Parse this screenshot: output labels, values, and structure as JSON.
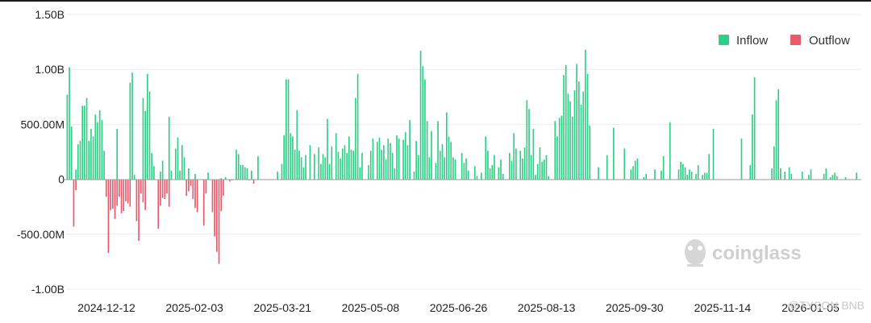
{
  "chart_data": {
    "type": "bar",
    "title": "",
    "xlabel": "",
    "ylabel": "",
    "ylim": [
      -1.0,
      1.5
    ],
    "y_unit": "B",
    "grid": "horizontal",
    "legend_position": "top-right",
    "y_ticks": [
      {
        "value": 1.5,
        "label": "1.50B"
      },
      {
        "value": 1.0,
        "label": "1.00B"
      },
      {
        "value": 0.5,
        "label": "500.00M"
      },
      {
        "value": 0.0,
        "label": "0"
      },
      {
        "value": -0.5,
        "label": "-500.00M"
      },
      {
        "value": -1.0,
        "label": "-1.00B"
      }
    ],
    "x_ticks": [
      "2024-12-12",
      "2025-02-03",
      "2025-03-21",
      "2025-05-08",
      "2025-06-26",
      "2025-08-13",
      "2025-09-30",
      "2025-11-14",
      "2026-01-05"
    ],
    "series": [
      {
        "name": "Inflow",
        "color": "#2fcf87",
        "values": [
          0.77,
          1.02,
          0.48,
          0,
          0.09,
          0.32,
          0.35,
          0.67,
          0.67,
          0.74,
          0.35,
          0.46,
          0.39,
          0.59,
          0.52,
          0.63,
          0.54,
          0.26,
          0,
          0,
          0,
          0,
          0,
          0.46,
          0,
          0,
          0,
          0,
          0,
          0.88,
          0.97,
          0.04,
          0,
          0,
          0,
          0.74,
          0.62,
          0.96,
          0.8,
          0.24,
          0.12,
          0,
          0,
          0.07,
          0.17,
          0,
          0,
          0.57,
          0.08,
          0,
          0.28,
          0.38,
          0.08,
          0.31,
          0.2,
          0,
          0.1,
          0,
          0,
          0.05,
          0,
          0,
          0,
          0,
          0,
          0.06,
          0,
          0,
          0,
          0,
          0,
          0.01,
          0,
          0.02,
          0,
          0,
          0,
          0,
          0.27,
          0.23,
          0.13,
          0.13,
          0.11,
          0.1,
          0,
          0.08,
          0,
          0,
          0.21,
          0,
          0,
          0,
          0,
          0,
          0,
          0,
          0,
          0.07,
          0,
          0.14,
          0.4,
          0.91,
          0.91,
          0.42,
          0.39,
          0.27,
          0.63,
          0.26,
          0.2,
          0.11,
          0.22,
          0,
          0.31,
          0,
          0.23,
          0,
          0.29,
          0.14,
          0.23,
          0.2,
          0.55,
          0.14,
          0.3,
          0,
          0.42,
          0.25,
          0.19,
          0.28,
          0.31,
          0.24,
          0.39,
          0.27,
          0.26,
          0.74,
          0.96,
          0.11,
          0.24,
          0,
          0,
          0.13,
          0.26,
          0.37,
          0,
          0.34,
          0.38,
          0.27,
          0.31,
          0.18,
          0.37,
          0.33,
          0.24,
          0.1,
          0.4,
          0.37,
          0,
          0.36,
          0.43,
          0.31,
          0.54,
          0,
          0.07,
          0.35,
          0.22,
          1.17,
          1.03,
          0.91,
          0.53,
          0.2,
          0.44,
          0,
          0.15,
          0.53,
          0.26,
          0.32,
          0.2,
          0.61,
          0.39,
          0.34,
          0.2,
          0.18,
          0,
          0,
          0.24,
          0.15,
          0.19,
          0.08,
          0,
          0,
          0.12,
          0.03,
          0,
          0.06,
          0,
          0.39,
          0.26,
          0.1,
          0.13,
          0.22,
          0,
          0.11,
          0.18,
          0.05,
          0,
          0,
          0.24,
          0.17,
          0.42,
          0.28,
          0,
          0.26,
          0.19,
          0.29,
          0.72,
          0.64,
          0.22,
          0.46,
          0.04,
          0.14,
          0.29,
          0.16,
          0.18,
          0.22,
          0.03,
          0,
          0,
          0.53,
          0.39,
          0.56,
          0.58,
          0.95,
          1.04,
          0.78,
          0.71,
          0.57,
          0.81,
          1.05,
          0.89,
          0.68,
          0.8,
          1.18,
          0.96,
          0.49,
          0,
          0,
          0,
          0.11,
          0,
          0,
          0,
          0.22,
          0,
          0,
          0.47,
          0,
          0,
          0,
          0,
          0.28,
          0,
          0,
          0.09,
          0.12,
          0.17,
          0.19,
          0,
          0,
          0.02,
          0.05,
          0,
          0,
          0,
          0.09,
          0,
          0,
          0.08,
          0.21,
          0,
          0,
          0.52,
          0,
          0,
          0,
          0.09,
          0.16,
          0.14,
          0.11,
          0.04,
          0.09,
          0.07,
          0,
          0.05,
          0.13,
          0,
          0.04,
          0.06,
          0.06,
          0.23,
          0,
          0.46,
          0,
          0,
          0,
          0,
          0,
          0,
          0,
          0,
          0,
          0,
          0,
          0,
          0.37,
          0,
          0,
          0,
          0.13,
          0.59,
          0.93,
          0,
          0,
          0,
          0,
          0,
          0,
          0,
          0.1,
          0.3,
          0.72,
          0.82,
          0.1,
          0,
          0.07,
          0,
          0.11,
          0.05,
          0,
          0,
          0,
          0,
          0.07,
          0,
          0,
          0.04,
          0.09,
          0,
          0,
          0,
          0,
          0,
          0.05,
          0.1,
          0,
          0.02,
          0.04,
          0.06,
          0.03,
          0,
          0,
          0,
          0.02,
          0,
          0,
          0,
          0,
          0.06,
          0
        ]
      },
      {
        "name": "Outflow",
        "color": "#e85a6d",
        "values": [
          0,
          0,
          0,
          -0.43,
          -0.1,
          0,
          0,
          0,
          0,
          0,
          0,
          0,
          0,
          0,
          0,
          0,
          0,
          0,
          -0.16,
          -0.67,
          -0.28,
          -0.27,
          -0.36,
          -0.24,
          -0.16,
          -0.31,
          -0.29,
          -0.2,
          -0.22,
          -0.25,
          0,
          0,
          -0.38,
          -0.56,
          -0.13,
          -0.21,
          -0.28,
          0,
          0,
          0,
          0,
          0,
          -0.45,
          -0.24,
          -0.17,
          -0.18,
          -0.13,
          -0.25,
          0,
          0,
          0,
          0,
          0,
          0,
          0,
          -0.15,
          -0.11,
          -0.06,
          -0.18,
          -0.26,
          -0.3,
          0,
          0,
          -0.42,
          -0.13,
          0,
          0,
          -0.3,
          -0.52,
          -0.66,
          -0.77,
          -0.29,
          -0.15,
          0,
          0,
          -0.02,
          -0.01,
          0,
          0,
          0,
          0,
          0,
          0,
          0,
          -0.01,
          0,
          -0.04,
          0,
          0,
          0,
          0,
          0,
          0,
          0,
          0,
          0,
          0,
          0,
          0,
          0,
          0,
          0,
          0,
          0,
          0,
          0,
          0,
          0,
          0,
          0,
          0,
          0,
          0,
          0,
          0,
          0,
          0,
          0,
          0,
          0,
          0,
          0,
          0,
          0,
          0,
          0,
          0,
          0,
          0,
          0,
          0,
          0,
          0,
          0,
          0,
          0,
          0,
          0,
          0,
          0,
          0,
          0,
          0,
          0,
          0,
          0,
          0,
          0,
          0,
          0,
          0,
          0,
          0,
          0,
          0,
          0,
          0,
          0,
          0,
          0,
          0,
          0,
          0,
          0,
          0,
          0,
          0,
          0,
          0,
          0,
          0,
          0,
          0,
          0,
          0,
          0,
          0,
          0,
          0,
          0,
          0,
          0,
          0,
          0,
          0,
          0,
          0,
          0,
          0,
          0,
          0,
          0,
          0,
          0,
          0,
          0,
          0,
          0,
          0,
          0,
          0,
          0,
          0,
          0,
          0,
          0,
          0,
          0,
          0,
          0,
          0,
          0,
          0,
          0,
          0,
          0,
          0,
          0,
          0,
          0,
          0,
          0,
          0,
          0,
          0,
          0,
          0,
          0,
          0,
          0,
          0,
          0,
          0,
          0,
          0,
          0,
          0,
          0,
          0,
          0,
          0,
          0,
          0,
          0,
          0,
          0,
          0,
          0,
          0,
          0,
          0,
          0,
          0,
          0,
          0,
          0,
          0,
          0,
          0,
          0,
          0,
          0,
          0,
          0,
          0,
          0,
          0,
          0,
          0,
          0,
          0,
          0,
          0,
          0,
          0,
          0,
          0,
          0,
          0,
          0,
          0,
          0,
          0,
          0,
          0,
          0,
          0,
          0,
          0,
          0,
          0,
          0,
          0,
          0,
          0,
          0,
          0,
          0,
          0,
          0,
          0,
          0,
          0,
          0,
          0,
          0,
          0,
          0,
          0,
          0,
          0,
          0,
          0,
          0,
          0,
          0,
          0,
          0,
          0,
          0,
          0,
          0,
          0,
          0,
          0,
          0,
          0,
          0,
          0,
          0,
          0,
          0,
          0,
          0,
          0,
          0,
          0,
          0,
          0,
          0,
          0,
          0,
          0,
          0,
          0,
          0,
          0,
          0,
          0,
          0,
          0,
          0,
          0,
          0,
          0,
          0,
          0,
          0,
          0,
          0,
          0,
          0,
          0,
          0,
          0,
          0,
          0,
          0,
          0,
          0,
          0,
          0,
          0,
          0,
          0,
          0,
          0,
          0,
          0,
          0,
          0,
          0,
          0,
          0,
          0,
          0,
          0,
          0,
          0,
          0,
          0,
          0,
          0,
          0,
          0,
          0,
          0,
          0,
          0,
          0,
          0,
          0,
          0,
          0,
          0,
          0,
          0,
          0,
          0,
          0,
          0,
          0,
          0,
          0,
          0,
          0,
          0,
          0,
          0
        ]
      }
    ]
  },
  "legend": [
    {
      "label": "Inflow",
      "color": "#2fcf87"
    },
    {
      "label": "Outflow",
      "color": "#e85a6d"
    }
  ],
  "watermark": {
    "text": "coinglass",
    "icon": "coinglass-logo-icon"
  },
  "credit": {
    "text": "@TYSON BNB"
  }
}
